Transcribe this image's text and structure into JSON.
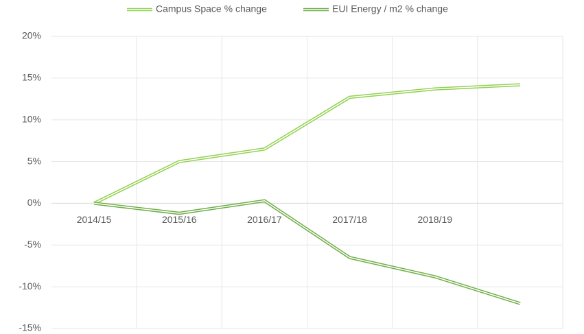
{
  "chart_data": {
    "type": "line",
    "categories": [
      "2014/15",
      "2015/16",
      "2016/17",
      "2017/18",
      "2018/19",
      null
    ],
    "series": [
      {
        "name": "Campus Space % change",
        "color": "#92d050",
        "values": [
          0,
          5,
          6.5,
          12.7,
          13.7,
          14.2
        ]
      },
      {
        "name": "EUI Energy / m2 % change",
        "color": "#70ad47",
        "values": [
          0,
          -1.2,
          0.3,
          -6.5,
          -8.8,
          -12
        ]
      }
    ],
    "ylim": [
      -15,
      20
    ],
    "yticks": [
      {
        "value": -15,
        "label": "-15%"
      },
      {
        "value": -10,
        "label": "-10%"
      },
      {
        "value": -5,
        "label": "-5%"
      },
      {
        "value": 0,
        "label": "0%"
      },
      {
        "value": 5,
        "label": "5%"
      },
      {
        "value": 10,
        "label": "10%"
      },
      {
        "value": 15,
        "label": "15%"
      },
      {
        "value": 20,
        "label": "20%"
      }
    ],
    "grid": true,
    "legend": "top"
  }
}
